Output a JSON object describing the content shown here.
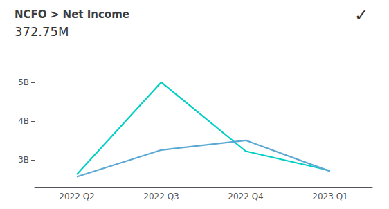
{
  "chart_data": {
    "type": "line",
    "title": "NCFO > Net Income",
    "subtitle": "372.75M",
    "annotations": [
      "✓"
    ],
    "categories": [
      "2022 Q2",
      "2022 Q3",
      "2022 Q4",
      "2023 Q1"
    ],
    "series": [
      {
        "color": "#00CFC4",
        "values": [
          2.62,
          5.0,
          3.22,
          2.72
        ]
      },
      {
        "color": "#5BA8D4",
        "values": [
          2.56,
          3.25,
          3.5,
          2.7
        ]
      }
    ],
    "ylim": [
      2.3,
      5.55
    ],
    "yticks": [
      {
        "value": 3.0,
        "label": "3B"
      },
      {
        "value": 4.0,
        "label": "4B"
      },
      {
        "value": 5.0,
        "label": "5B"
      }
    ],
    "grid": false
  }
}
